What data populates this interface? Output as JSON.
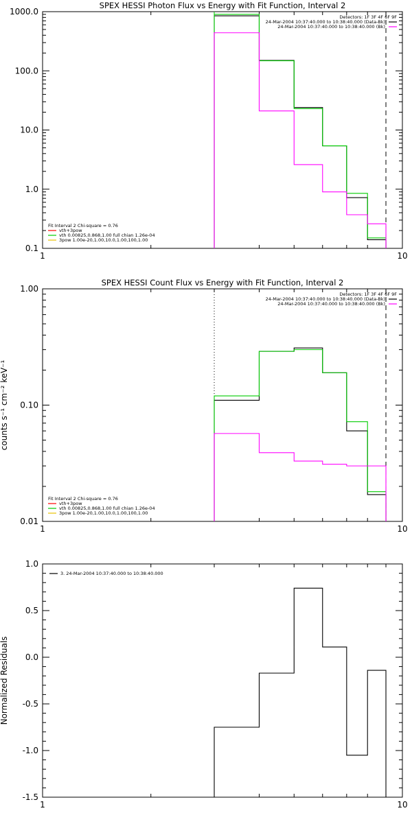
{
  "chart_data": [
    {
      "type": "line",
      "title": "SPEX HESSI Photon Flux vs Energy with Fit Function, Interval 2",
      "xlabel": "",
      "ylabel": "",
      "x_scale": "log",
      "y_scale": "log",
      "xlim": [
        1,
        10
      ],
      "ylim": [
        0.1,
        1000
      ],
      "x_ticks": [
        {
          "v": 1,
          "label": "1"
        },
        {
          "v": 10,
          "label": "10"
        }
      ],
      "y_ticks": [
        {
          "v": 0.1,
          "label": "0.1"
        },
        {
          "v": 1,
          "label": "1.0"
        },
        {
          "v": 10,
          "label": "10.0"
        },
        {
          "v": 100,
          "label": "100.0"
        },
        {
          "v": 1000,
          "label": "1000.0"
        }
      ],
      "vlines": [
        {
          "x": 3,
          "style": "green-dashed"
        },
        {
          "x": 9,
          "style": "dashed"
        }
      ],
      "legend_top": {
        "header": "Detectors: 1F 3F 4F 6F 9F",
        "entries": [
          {
            "label": "24-Mar-2004 10:37:40.000 to 10:38:40.000 (Data-Bk)",
            "color": "#000000"
          },
          {
            "label": "24-Mar-2004 10:37:40.000 to 10:38:40.000 (Bk)",
            "color": "#ff00ff"
          }
        ]
      },
      "legend_bottom": {
        "header": "Fit Interval 2   Chi-square = 0.76",
        "entries": [
          {
            "label": "vth+3pow",
            "color": "#ff0000"
          },
          {
            "label": "vth 0.00825,0.868,1.00  full chian 1.26e-04",
            "color": "#00cc00"
          },
          {
            "label": "3pow 1.00e-20,1.00,10.0,1.00,100,1.00",
            "color": "#e8c000"
          }
        ]
      },
      "edges": [
        3,
        4,
        5,
        6,
        7,
        8,
        9
      ],
      "series": [
        {
          "color": "#000000",
          "values": [
            850,
            150,
            24,
            5.4,
            0.72,
            0.14
          ]
        },
        {
          "color": "#00cc00",
          "values": [
            900,
            148,
            23,
            5.4,
            0.85,
            0.15
          ]
        },
        {
          "color": "#ff00ff",
          "values": [
            440,
            21,
            2.6,
            0.9,
            0.37,
            0.26
          ]
        }
      ]
    },
    {
      "type": "line",
      "title": "SPEX HESSI Count Flux vs Energy with Fit Function, Interval 2",
      "xlabel": "",
      "ylabel": "counts s⁻¹ cm⁻² keV⁻¹",
      "x_scale": "log",
      "y_scale": "log",
      "xlim": [
        1,
        10
      ],
      "ylim": [
        0.01,
        1
      ],
      "x_ticks": [
        {
          "v": 1,
          "label": "1"
        },
        {
          "v": 10,
          "label": "10"
        }
      ],
      "y_ticks": [
        {
          "v": 0.01,
          "label": "0.01"
        },
        {
          "v": 0.1,
          "label": "0.10"
        },
        {
          "v": 1,
          "label": "1.00"
        }
      ],
      "vlines": [
        {
          "x": 3,
          "style": "dotted"
        },
        {
          "x": 9,
          "style": "dashed"
        }
      ],
      "legend_top": {
        "header": "Detectors: 1F 3F 4F 6F 9F",
        "entries": [
          {
            "label": "24-Mar-2004 10:37:40.000 to 10:38:40.000 (Data-Bk)",
            "color": "#000000"
          },
          {
            "label": "24-Mar-2004 10:37:40.000 to 10:38:40.000 (Bk)",
            "color": "#ff00ff"
          }
        ]
      },
      "legend_bottom": {
        "header": "Fit Interval 2   Chi-square = 0.76",
        "entries": [
          {
            "label": "vth+3pow",
            "color": "#ff0000"
          },
          {
            "label": "vth 0.00825,0.868,1.00  full chian 1.26e-04",
            "color": "#00cc00"
          },
          {
            "label": "3pow 1.00e-20,1.00,10.0,1.00,100,1.00",
            "color": "#e8c000"
          }
        ]
      },
      "edges": [
        3,
        4,
        5,
        6,
        7,
        8,
        9
      ],
      "series": [
        {
          "color": "#000000",
          "values": [
            0.11,
            0.29,
            0.31,
            0.19,
            0.06,
            0.017
          ]
        },
        {
          "color": "#00cc00",
          "values": [
            0.12,
            0.29,
            0.3,
            0.19,
            0.072,
            0.018
          ]
        },
        {
          "color": "#ff00ff",
          "values": [
            0.057,
            0.039,
            0.033,
            0.031,
            0.03,
            0.03
          ]
        }
      ]
    },
    {
      "type": "line",
      "title": "",
      "xlabel": "",
      "ylabel": "Normalized Residuals",
      "x_scale": "log",
      "y_scale": "linear",
      "xlim": [
        1,
        10
      ],
      "ylim": [
        -1.5,
        1.0
      ],
      "x_ticks": [
        {
          "v": 1,
          "label": "1"
        },
        {
          "v": 10,
          "label": "10"
        }
      ],
      "y_ticks": [
        {
          "v": -1.5,
          "label": "-1.5"
        },
        {
          "v": -1.0,
          "label": "-1.0"
        },
        {
          "v": -0.5,
          "label": "-0.5"
        },
        {
          "v": 0.0,
          "label": "0.0"
        },
        {
          "v": 0.5,
          "label": "0.5"
        },
        {
          "v": 1.0,
          "label": "1.0"
        }
      ],
      "vlines": [],
      "legend_top": {
        "header": "",
        "entries": [
          {
            "label": "3. 24-Mar-2004 10:37:40.000 to 10:38:40.000",
            "color": "#000000"
          }
        ]
      },
      "legend_bottom": {
        "header": "",
        "entries": []
      },
      "edges": [
        3,
        4,
        5,
        6,
        7,
        8,
        9
      ],
      "series": [
        {
          "color": "#000000",
          "values": [
            -0.75,
            -0.17,
            0.74,
            0.11,
            -1.05,
            -0.14
          ]
        }
      ]
    }
  ]
}
